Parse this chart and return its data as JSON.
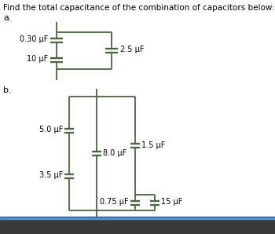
{
  "title": "Find the total capacitance of the combination of capacitors below:",
  "title_fontsize": 7.5,
  "label_a": "a.",
  "label_b": "b.",
  "cap_color": "#4a6741",
  "bg_color": "#ffffff",
  "bottom_bar_color": "#3a3a3a",
  "text_color": "#000000",
  "figsize": [
    3.5,
    2.98
  ],
  "dpi": 100
}
